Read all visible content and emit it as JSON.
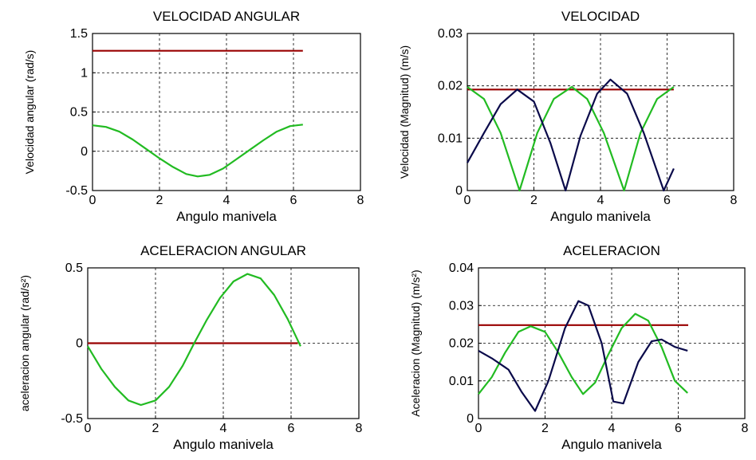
{
  "chart_data": [
    {
      "type": "line",
      "title": "VELOCIDAD ANGULAR",
      "xlabel": "Angulo manivela",
      "ylabel": "Velocidad angular (rad/s)",
      "xlim": [
        0,
        8
      ],
      "ylim": [
        -0.5,
        1.5
      ],
      "xticks": [
        0,
        2,
        4,
        6,
        8
      ],
      "xtick_labels": [
        "0",
        "2",
        "4",
        "6",
        "8"
      ],
      "yticks": [
        -0.5,
        0,
        0.5,
        1,
        1.5
      ],
      "ytick_labels": [
        "-0.5",
        "0",
        "0.5",
        "1",
        "1.5"
      ],
      "grid": true,
      "series": [
        {
          "color": "#990000",
          "x": [
            0,
            6.28
          ],
          "y": [
            1.28,
            1.28
          ]
        },
        {
          "color": "#22bb22",
          "x": [
            0,
            0.4,
            0.8,
            1.2,
            1.6,
            2.0,
            2.4,
            2.8,
            3.14,
            3.5,
            3.9,
            4.3,
            4.7,
            5.1,
            5.5,
            5.9,
            6.28
          ],
          "y": [
            0.33,
            0.31,
            0.25,
            0.15,
            0.03,
            -0.09,
            -0.2,
            -0.29,
            -0.32,
            -0.3,
            -0.22,
            -0.1,
            0.02,
            0.14,
            0.25,
            0.32,
            0.34
          ]
        }
      ]
    },
    {
      "type": "line",
      "title": "VELOCIDAD",
      "xlabel": "Angulo manivela",
      "ylabel": "Velocidad (Magnitud) (m/s)",
      "xlim": [
        0,
        8
      ],
      "ylim": [
        0,
        0.03
      ],
      "xticks": [
        0,
        2,
        4,
        6,
        8
      ],
      "xtick_labels": [
        "0",
        "2",
        "4",
        "6",
        "8"
      ],
      "yticks": [
        0,
        0.01,
        0.02,
        0.03
      ],
      "ytick_labels": [
        "0",
        "0.01",
        "0.02",
        "0.03"
      ],
      "grid": true,
      "series": [
        {
          "color": "#990000",
          "x": [
            0,
            6.2
          ],
          "y": [
            0.0193,
            0.0193
          ]
        },
        {
          "color": "#22bb22",
          "x": [
            0,
            0.5,
            1.0,
            1.57,
            2.1,
            2.6,
            3.14,
            3.6,
            4.1,
            4.71,
            5.2,
            5.7,
            6.2
          ],
          "y": [
            0.0198,
            0.0175,
            0.011,
            0.0,
            0.011,
            0.0175,
            0.0198,
            0.0175,
            0.011,
            0.0,
            0.011,
            0.0175,
            0.0198
          ]
        },
        {
          "color": "#0a0a4a",
          "x": [
            0,
            0.5,
            1.0,
            1.5,
            2.0,
            2.5,
            2.95,
            3.4,
            3.9,
            4.3,
            4.8,
            5.3,
            5.9,
            6.2
          ],
          "y": [
            0.0053,
            0.011,
            0.0165,
            0.0193,
            0.017,
            0.009,
            0.0,
            0.0105,
            0.0185,
            0.0212,
            0.0185,
            0.011,
            0.0,
            0.0042
          ]
        }
      ]
    },
    {
      "type": "line",
      "title": "ACELERACION ANGULAR",
      "xlabel": "Angulo manivela",
      "ylabel": "aceleracion angular (rad/s²)",
      "xlim": [
        0,
        8
      ],
      "ylim": [
        -0.5,
        0.5
      ],
      "xticks": [
        0,
        2,
        4,
        6,
        8
      ],
      "xtick_labels": [
        "0",
        "2",
        "4",
        "6",
        "8"
      ],
      "yticks": [
        -0.5,
        0,
        0.5
      ],
      "ytick_labels": [
        "-0.5",
        "0",
        "0.5"
      ],
      "grid": true,
      "series": [
        {
          "color": "#990000",
          "x": [
            0,
            6.2
          ],
          "y": [
            0,
            0
          ]
        },
        {
          "color": "#22bb22",
          "x": [
            0,
            0.4,
            0.8,
            1.2,
            1.57,
            2.0,
            2.4,
            2.8,
            3.14,
            3.5,
            3.9,
            4.3,
            4.71,
            5.1,
            5.5,
            5.9,
            6.28
          ],
          "y": [
            -0.02,
            -0.17,
            -0.29,
            -0.38,
            -0.41,
            -0.38,
            -0.29,
            -0.15,
            0.0,
            0.15,
            0.3,
            0.41,
            0.46,
            0.43,
            0.32,
            0.16,
            -0.02
          ]
        }
      ]
    },
    {
      "type": "line",
      "title": "ACELERACION",
      "xlabel": "Angulo manivela",
      "ylabel": "Aceleracion (Magnitud) (m/s²)",
      "xlim": [
        0,
        8
      ],
      "ylim": [
        0,
        0.04
      ],
      "xticks": [
        0,
        2,
        4,
        6,
        8
      ],
      "xtick_labels": [
        "0",
        "2",
        "4",
        "6",
        "8"
      ],
      "yticks": [
        0,
        0.01,
        0.02,
        0.03,
        0.04
      ],
      "ytick_labels": [
        "0",
        "0.01",
        "0.02",
        "0.03",
        "0.04"
      ],
      "grid": true,
      "series": [
        {
          "color": "#990000",
          "x": [
            0,
            6.3
          ],
          "y": [
            0.0248,
            0.0248
          ]
        },
        {
          "color": "#22bb22",
          "x": [
            0,
            0.4,
            0.8,
            1.2,
            1.57,
            2.0,
            2.4,
            2.8,
            3.14,
            3.5,
            3.9,
            4.3,
            4.71,
            5.1,
            5.5,
            5.9,
            6.28
          ],
          "y": [
            0.0065,
            0.011,
            0.0175,
            0.023,
            0.0245,
            0.023,
            0.0175,
            0.011,
            0.0065,
            0.0095,
            0.017,
            0.024,
            0.0278,
            0.026,
            0.019,
            0.01,
            0.0068
          ]
        }
      ]
    },
    {
      "_ref": "same panel as above"
    }
  ],
  "extra_series_panel4": {
    "color": "#0a0a4a",
    "x": [
      0,
      0.4,
      0.9,
      1.3,
      1.7,
      2.1,
      2.6,
      3.0,
      3.3,
      3.7,
      4.05,
      4.35,
      4.8,
      5.2,
      5.5,
      5.9,
      6.28
    ],
    "y": [
      0.018,
      0.016,
      0.013,
      0.007,
      0.002,
      0.01,
      0.024,
      0.0312,
      0.03,
      0.02,
      0.0045,
      0.004,
      0.015,
      0.0205,
      0.021,
      0.019,
      0.018
    ]
  }
}
